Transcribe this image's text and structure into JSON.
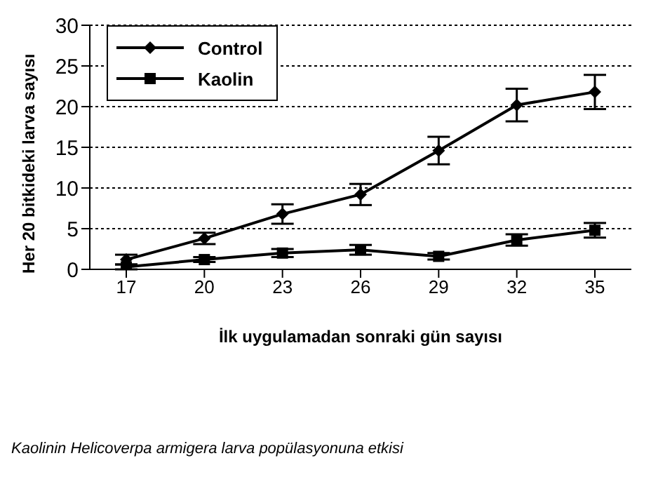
{
  "chart_data": {
    "type": "line",
    "xlabel": "İlk uygulamadan sonraki gün sayısı",
    "ylabel": "Her 20 bitkideki larva sayısı",
    "annotations": [
      "Kaolinin Helicoverpa armigera larva popülasyonuna etkisi"
    ],
    "categories": [
      "17",
      "20",
      "23",
      "26",
      "29",
      "32",
      "35"
    ],
    "series": [
      {
        "name": "Control",
        "color": "#000000",
        "marker": "diamond",
        "values": [
          1.2,
          3.8,
          6.8,
          9.2,
          14.6,
          20.2,
          21.8
        ],
        "errors": [
          0.6,
          0.7,
          1.2,
          1.3,
          1.7,
          2.0,
          2.1
        ]
      },
      {
        "name": "Kaolin",
        "color": "#000000",
        "marker": "square",
        "values": [
          0.3,
          1.2,
          2.0,
          2.4,
          1.6,
          3.6,
          4.8
        ],
        "errors": [
          0.3,
          0.3,
          0.5,
          0.6,
          0.4,
          0.7,
          0.9
        ]
      }
    ],
    "ylim": [
      0,
      30
    ],
    "yticks": [
      0,
      5,
      10,
      15,
      20,
      25,
      30
    ],
    "grid": "y",
    "legend": "top left",
    "line_style": "solid"
  }
}
